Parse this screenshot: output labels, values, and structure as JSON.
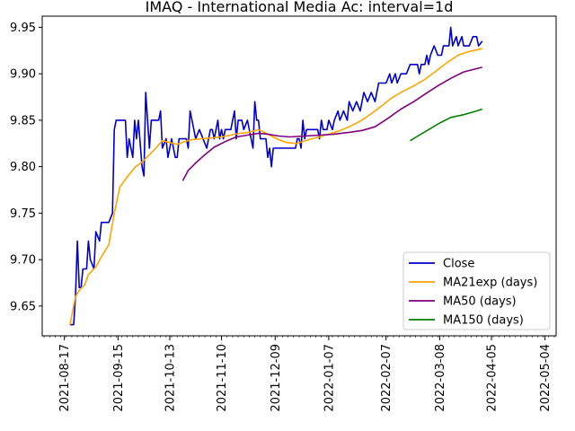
{
  "chart_data": {
    "type": "line",
    "title": "IMAQ - International Media Ac: interval=1d",
    "xlabel": "",
    "ylabel": "",
    "x_range": [
      "2021-08-05",
      "2022-05-10"
    ],
    "ylim": [
      9.618,
      9.962
    ],
    "grid": false,
    "legend_position": "lower-right",
    "x_ticks": [
      "2021-08-17",
      "2021-09-15",
      "2021-10-13",
      "2021-11-10",
      "2021-12-09",
      "2022-01-07",
      "2022-02-07",
      "2022-03-08",
      "2022-04-05",
      "2022-05-04"
    ],
    "y_ticks": [
      "9.65",
      "9.70",
      "9.75",
      "9.80",
      "9.85",
      "9.90",
      "9.95"
    ],
    "series": [
      {
        "name": "Close",
        "color": "#0000cc",
        "points": [
          [
            "2021-08-20",
            9.63
          ],
          [
            "2021-08-22",
            9.63
          ],
          [
            "2021-08-23",
            9.66
          ],
          [
            "2021-08-24",
            9.72
          ],
          [
            "2021-08-25",
            9.67
          ],
          [
            "2021-08-26",
            9.67
          ],
          [
            "2021-08-27",
            9.69
          ],
          [
            "2021-08-29",
            9.69
          ],
          [
            "2021-08-30",
            9.72
          ],
          [
            "2021-08-31",
            9.7
          ],
          [
            "2021-09-02",
            9.69
          ],
          [
            "2021-09-03",
            9.73
          ],
          [
            "2021-09-05",
            9.72
          ],
          [
            "2021-09-06",
            9.74
          ],
          [
            "2021-09-10",
            9.74
          ],
          [
            "2021-09-12",
            9.75
          ],
          [
            "2021-09-13",
            9.84
          ],
          [
            "2021-09-14",
            9.85
          ],
          [
            "2021-09-19",
            9.85
          ],
          [
            "2021-09-20",
            9.81
          ],
          [
            "2021-09-21",
            9.83
          ],
          [
            "2021-09-23",
            9.81
          ],
          [
            "2021-09-24",
            9.85
          ],
          [
            "2021-09-25",
            9.83
          ],
          [
            "2021-09-26",
            9.85
          ],
          [
            "2021-09-28",
            9.8
          ],
          [
            "2021-09-29",
            9.79
          ],
          [
            "2021-09-30",
            9.88
          ],
          [
            "2021-10-02",
            9.82
          ],
          [
            "2021-10-03",
            9.85
          ],
          [
            "2021-10-07",
            9.85
          ],
          [
            "2021-10-08",
            9.86
          ],
          [
            "2021-10-09",
            9.82
          ],
          [
            "2021-10-11",
            9.83
          ],
          [
            "2021-10-12",
            9.81
          ],
          [
            "2021-10-14",
            9.83
          ],
          [
            "2021-10-16",
            9.81
          ],
          [
            "2021-10-17",
            9.81
          ],
          [
            "2021-10-18",
            9.83
          ],
          [
            "2021-10-22",
            9.83
          ],
          [
            "2021-10-23",
            9.82
          ],
          [
            "2021-10-24",
            9.86
          ],
          [
            "2021-10-25",
            9.85
          ],
          [
            "2021-10-27",
            9.83
          ],
          [
            "2021-10-29",
            9.84
          ],
          [
            "2021-10-31",
            9.83
          ],
          [
            "2021-11-02",
            9.82
          ],
          [
            "2021-11-04",
            9.84
          ],
          [
            "2021-11-05",
            9.84
          ],
          [
            "2021-11-06",
            9.83
          ],
          [
            "2021-11-08",
            9.85
          ],
          [
            "2021-11-09",
            9.83
          ],
          [
            "2021-11-10",
            9.84
          ],
          [
            "2021-11-11",
            9.83
          ],
          [
            "2021-11-12",
            9.84
          ],
          [
            "2021-11-15",
            9.84
          ],
          [
            "2021-11-17",
            9.86
          ],
          [
            "2021-11-18",
            9.83
          ],
          [
            "2021-11-19",
            9.85
          ],
          [
            "2021-11-21",
            9.85
          ],
          [
            "2021-11-22",
            9.84
          ],
          [
            "2021-11-24",
            9.85
          ],
          [
            "2021-11-26",
            9.83
          ],
          [
            "2021-11-27",
            9.82
          ],
          [
            "2021-11-28",
            9.87
          ],
          [
            "2021-11-29",
            9.85
          ],
          [
            "2021-11-30",
            9.85
          ],
          [
            "2021-12-01",
            9.83
          ],
          [
            "2021-12-04",
            9.83
          ],
          [
            "2021-12-05",
            9.81
          ],
          [
            "2021-12-06",
            9.82
          ],
          [
            "2021-12-07",
            9.8
          ],
          [
            "2021-12-08",
            9.82
          ],
          [
            "2021-12-20",
            9.82
          ],
          [
            "2021-12-21",
            9.83
          ],
          [
            "2021-12-22",
            9.83
          ],
          [
            "2021-12-23",
            9.82
          ],
          [
            "2021-12-24",
            9.85
          ],
          [
            "2021-12-25",
            9.83
          ],
          [
            "2021-12-26",
            9.84
          ],
          [
            "2022-01-01",
            9.84
          ],
          [
            "2022-01-02",
            9.83
          ],
          [
            "2022-01-03",
            9.85
          ],
          [
            "2022-01-04",
            9.84
          ],
          [
            "2022-01-06",
            9.84
          ],
          [
            "2022-01-07",
            9.85
          ],
          [
            "2022-01-09",
            9.84
          ],
          [
            "2022-01-10",
            9.85
          ],
          [
            "2022-01-12",
            9.86
          ],
          [
            "2022-01-13",
            9.85
          ],
          [
            "2022-01-15",
            9.86
          ],
          [
            "2022-01-17",
            9.85
          ],
          [
            "2022-01-18",
            9.87
          ],
          [
            "2022-01-20",
            9.86
          ],
          [
            "2022-01-22",
            9.87
          ],
          [
            "2022-01-24",
            9.86
          ],
          [
            "2022-01-26",
            9.88
          ],
          [
            "2022-01-28",
            9.87
          ],
          [
            "2022-01-30",
            9.88
          ],
          [
            "2022-02-01",
            9.87
          ],
          [
            "2022-02-03",
            9.89
          ],
          [
            "2022-02-07",
            9.89
          ],
          [
            "2022-02-09",
            9.9
          ],
          [
            "2022-02-10",
            9.89
          ],
          [
            "2022-02-12",
            9.9
          ],
          [
            "2022-02-13",
            9.89
          ],
          [
            "2022-02-15",
            9.9
          ],
          [
            "2022-02-18",
            9.9
          ],
          [
            "2022-02-20",
            9.91
          ],
          [
            "2022-02-24",
            9.91
          ],
          [
            "2022-02-25",
            9.9
          ],
          [
            "2022-02-26",
            9.91
          ],
          [
            "2022-02-28",
            9.91
          ],
          [
            "2022-03-01",
            9.92
          ],
          [
            "2022-03-02",
            9.91
          ],
          [
            "2022-03-03",
            9.92
          ],
          [
            "2022-03-05",
            9.93
          ],
          [
            "2022-03-07",
            9.92
          ],
          [
            "2022-03-09",
            9.92
          ],
          [
            "2022-03-10",
            9.93
          ],
          [
            "2022-03-13",
            9.93
          ],
          [
            "2022-03-14",
            9.95
          ],
          [
            "2022-03-15",
            9.93
          ],
          [
            "2022-03-17",
            9.94
          ],
          [
            "2022-03-18",
            9.93
          ],
          [
            "2022-03-20",
            9.94
          ],
          [
            "2022-03-21",
            9.93
          ],
          [
            "2022-03-24",
            9.93
          ],
          [
            "2022-03-26",
            9.94
          ],
          [
            "2022-03-28",
            9.94
          ],
          [
            "2022-03-29",
            9.93
          ],
          [
            "2022-03-31",
            9.935
          ]
        ]
      },
      {
        "name": "MA21exp (days)",
        "color": "#ffa500",
        "points": [
          [
            "2021-08-20",
            9.63
          ],
          [
            "2021-08-23",
            9.66
          ],
          [
            "2021-08-25",
            9.667
          ],
          [
            "2021-08-28",
            9.673
          ],
          [
            "2021-08-30",
            9.684
          ],
          [
            "2021-09-03",
            9.692
          ],
          [
            "2021-09-06",
            9.703
          ],
          [
            "2021-09-10",
            9.716
          ],
          [
            "2021-09-13",
            9.75
          ],
          [
            "2021-09-16",
            9.778
          ],
          [
            "2021-09-20",
            9.789
          ],
          [
            "2021-09-24",
            9.799
          ],
          [
            "2021-09-28",
            9.805
          ],
          [
            "2021-10-01",
            9.811
          ],
          [
            "2021-10-05",
            9.819
          ],
          [
            "2021-10-09",
            9.828
          ],
          [
            "2021-10-13",
            9.826
          ],
          [
            "2021-10-17",
            9.824
          ],
          [
            "2021-10-21",
            9.827
          ],
          [
            "2021-10-25",
            9.829
          ],
          [
            "2021-10-30",
            9.83
          ],
          [
            "2021-11-05",
            9.831
          ],
          [
            "2021-11-10",
            9.832
          ],
          [
            "2021-11-15",
            9.834
          ],
          [
            "2021-11-20",
            9.836
          ],
          [
            "2021-11-25",
            9.837
          ],
          [
            "2021-11-30",
            9.84
          ],
          [
            "2021-12-04",
            9.836
          ],
          [
            "2021-12-10",
            9.83
          ],
          [
            "2021-12-15",
            9.826
          ],
          [
            "2021-12-21",
            9.825
          ],
          [
            "2021-12-27",
            9.829
          ],
          [
            "2022-01-02",
            9.832
          ],
          [
            "2022-01-07",
            9.835
          ],
          [
            "2022-01-12",
            9.838
          ],
          [
            "2022-01-18",
            9.843
          ],
          [
            "2022-01-24",
            9.849
          ],
          [
            "2022-01-30",
            9.857
          ],
          [
            "2022-02-05",
            9.866
          ],
          [
            "2022-02-10",
            9.874
          ],
          [
            "2022-02-16",
            9.881
          ],
          [
            "2022-02-22",
            9.887
          ],
          [
            "2022-02-28",
            9.894
          ],
          [
            "2022-03-06",
            9.903
          ],
          [
            "2022-03-12",
            9.912
          ],
          [
            "2022-03-18",
            9.92
          ],
          [
            "2022-03-24",
            9.924
          ],
          [
            "2022-03-31",
            9.927
          ]
        ]
      },
      {
        "name": "MA50 (days)",
        "color": "#800080",
        "points": [
          [
            "2021-10-20",
            9.785
          ],
          [
            "2021-10-23",
            9.796
          ],
          [
            "2021-10-27",
            9.804
          ],
          [
            "2021-11-01",
            9.813
          ],
          [
            "2021-11-06",
            9.821
          ],
          [
            "2021-11-12",
            9.827
          ],
          [
            "2021-11-18",
            9.832
          ],
          [
            "2021-11-24",
            9.834
          ],
          [
            "2021-11-30",
            9.836
          ],
          [
            "2021-12-05",
            9.835
          ],
          [
            "2021-12-11",
            9.833
          ],
          [
            "2021-12-17",
            9.832
          ],
          [
            "2021-12-25",
            9.833
          ],
          [
            "2022-01-02",
            9.834
          ],
          [
            "2022-01-10",
            9.835
          ],
          [
            "2022-01-18",
            9.837
          ],
          [
            "2022-01-25",
            9.839
          ],
          [
            "2022-02-01",
            9.843
          ],
          [
            "2022-02-08",
            9.852
          ],
          [
            "2022-02-15",
            9.862
          ],
          [
            "2022-02-22",
            9.87
          ],
          [
            "2022-02-28",
            9.878
          ],
          [
            "2022-03-07",
            9.887
          ],
          [
            "2022-03-14",
            9.895
          ],
          [
            "2022-03-21",
            9.902
          ],
          [
            "2022-03-31",
            9.907
          ]
        ]
      },
      {
        "name": "MA150 (days)",
        "color": "#008000",
        "points": [
          [
            "2022-02-20",
            9.828
          ],
          [
            "2022-02-25",
            9.834
          ],
          [
            "2022-03-03",
            9.841
          ],
          [
            "2022-03-08",
            9.847
          ],
          [
            "2022-03-14",
            9.853
          ],
          [
            "2022-03-21",
            9.856
          ],
          [
            "2022-03-28",
            9.86
          ],
          [
            "2022-03-31",
            9.862
          ]
        ]
      }
    ]
  }
}
